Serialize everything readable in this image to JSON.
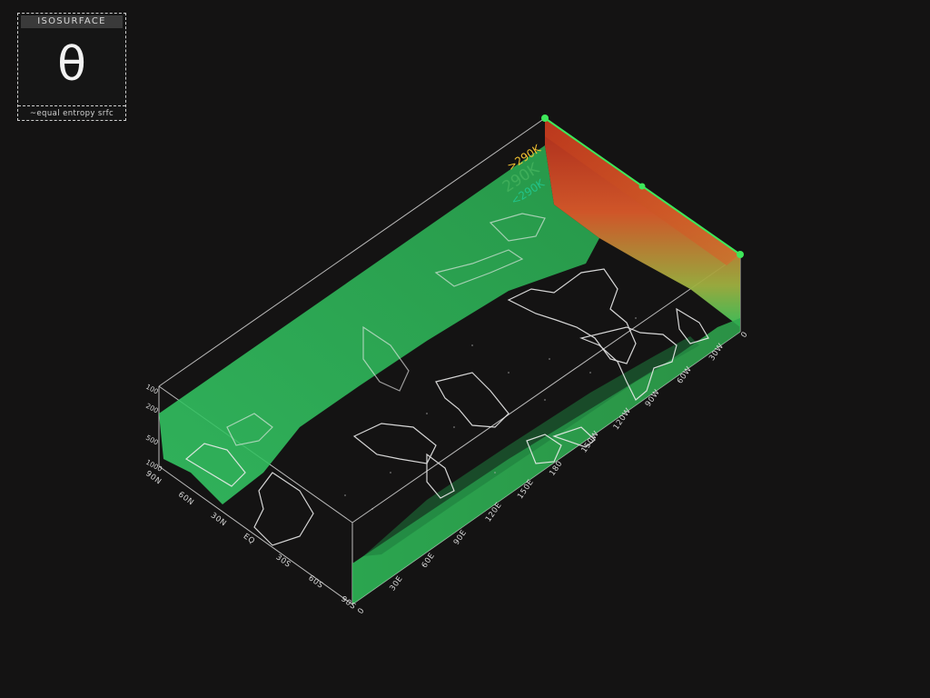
{
  "legend": {
    "title": "ISOSURFACE",
    "symbol": "θ",
    "subtitle": "~equal entropy srfc"
  },
  "colorbar": {
    "high": ">290K",
    "mid": "290K",
    "low": "<290K",
    "colors": {
      "high": "#f1c232",
      "mid": "#3fae5a",
      "low": "#22c48a"
    }
  },
  "axes": {
    "pressure_levels": [
      "100",
      "200",
      "500",
      "1000"
    ],
    "latitude": [
      "90N",
      "60N",
      "30N",
      "EQ",
      "30S",
      "60S",
      "90S"
    ],
    "longitude": [
      "0",
      "30E",
      "60E",
      "90E",
      "120E",
      "150E",
      "180",
      "150W",
      "120W",
      "90W",
      "60W",
      "30W",
      "0"
    ]
  },
  "colors": {
    "background": "#141313",
    "surface_green": "#2fc25c",
    "surface_warm": "#d2491f",
    "coastline": "#e8e8e8",
    "box_lines": "#d9d9d9",
    "handle": "#3ee85a"
  }
}
